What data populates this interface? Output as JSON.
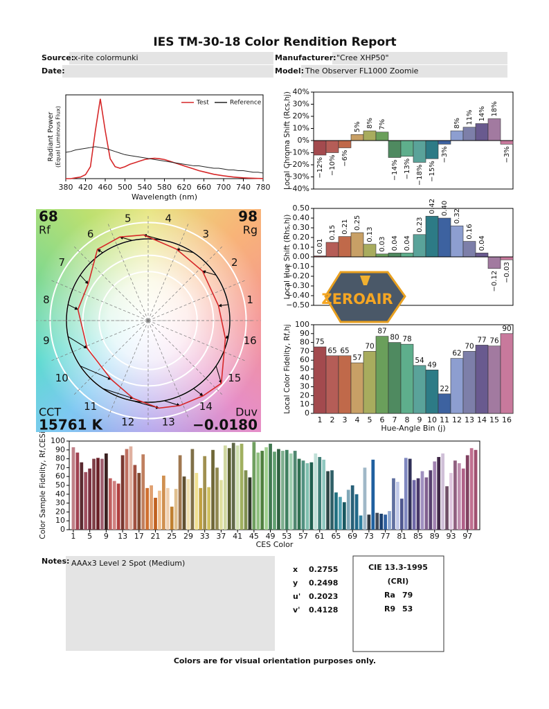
{
  "header": {
    "title": "IES TM-30-18 Color Rendition Report"
  },
  "fields": [
    {
      "label": "Source:",
      "value": "x-rite colormunki"
    },
    {
      "label": "Manufacturer:",
      "value": "\"Cree XHP50\""
    },
    {
      "label": "Date:"
    },
    {
      "label": "Model:",
      "value": "The Observer FL1000 Zoomie"
    }
  ],
  "chart_data": [
    {
      "type": "line",
      "y_label": [
        "Radiant Power",
        "(Equal Luminous Flux)"
      ],
      "x_label": "Wavelength (nm)",
      "x": [
        380,
        390,
        400,
        410,
        420,
        430,
        440,
        450,
        460,
        470,
        480,
        490,
        500,
        510,
        520,
        530,
        540,
        550,
        560,
        570,
        580,
        590,
        600,
        610,
        620,
        630,
        640,
        650,
        660,
        670,
        680,
        690,
        700,
        710,
        720,
        730,
        740,
        750,
        760,
        770,
        780
      ],
      "series": [
        {
          "name": "Test",
          "color": "#d62728",
          "values": [
            0,
            0,
            0.01,
            0.02,
            0.05,
            0.15,
            0.6,
            1.0,
            0.6,
            0.25,
            0.15,
            0.13,
            0.15,
            0.18,
            0.2,
            0.22,
            0.24,
            0.25,
            0.255,
            0.25,
            0.24,
            0.22,
            0.2,
            0.18,
            0.16,
            0.14,
            0.12,
            0.1,
            0.085,
            0.07,
            0.055,
            0.045,
            0.035,
            0.028,
            0.02,
            0.015,
            0.01,
            0.007,
            0.005,
            0.003,
            0.002
          ]
        },
        {
          "name": "Reference",
          "color": "#222222",
          "values": [
            0.33,
            0.34,
            0.36,
            0.37,
            0.38,
            0.39,
            0.4,
            0.39,
            0.38,
            0.36,
            0.34,
            0.32,
            0.3,
            0.29,
            0.28,
            0.27,
            0.26,
            0.25,
            0.24,
            0.23,
            0.22,
            0.21,
            0.2,
            0.19,
            0.18,
            0.17,
            0.16,
            0.16,
            0.15,
            0.14,
            0.13,
            0.13,
            0.12,
            0.11,
            0.11,
            0.1,
            0.1,
            0.09,
            0.08,
            0.08,
            0.07
          ]
        }
      ],
      "xlim": [
        380,
        780
      ],
      "xticks": [
        380,
        420,
        460,
        500,
        540,
        580,
        620,
        660,
        700,
        740,
        780
      ],
      "ylim": [
        0,
        1.05
      ],
      "legend": "upper right"
    },
    {
      "type": "vector",
      "rf_label": "Rf",
      "rf": 68,
      "rg_label": "Rg",
      "rg": 98,
      "cct_label": "CCT",
      "cct": "15761 K",
      "duv_label": "Duv",
      "duv": "−0.0180",
      "hue_bins": [
        "1",
        "2",
        "3",
        "4",
        "5",
        "6",
        "7",
        "8",
        "9",
        "10",
        "11",
        "12",
        "13",
        "14",
        "15",
        "16"
      ],
      "test_color": "#d62728",
      "reference_color": "#000000"
    },
    {
      "type": "bar",
      "y_label": "Local Chroma Shift (Rcs,hj)",
      "values": [
        -12,
        -10,
        -6,
        5,
        8,
        7,
        -14,
        -13,
        -18,
        -15,
        -3,
        8,
        11,
        14,
        18,
        -3
      ],
      "value_labels": [
        "−12%",
        "−10%",
        "−6%",
        "5%",
        "8%",
        "7%",
        "−14%",
        "−13%",
        "−18%",
        "−15%",
        "−3%",
        "8%",
        "11%",
        "14%",
        "18%",
        "−3%"
      ],
      "colors": [
        "#a34a4e",
        "#b55d57",
        "#c0694a",
        "#c8a066",
        "#a8ac5e",
        "#6a9f5b",
        "#4f8a60",
        "#5eae8c",
        "#5aa39a",
        "#2d7b86",
        "#3d62a0",
        "#8d9ed0",
        "#7d7fa9",
        "#695a8f",
        "#a27aa0",
        "#c8799c"
      ],
      "ylim": [
        -40,
        40
      ],
      "yticks": [
        {
          "value": -40,
          "label": "−40%"
        },
        {
          "value": -30,
          "label": "−30%"
        },
        {
          "value": -20,
          "label": "−20%"
        },
        {
          "value": -10,
          "label": "−10%"
        },
        {
          "value": 0,
          "label": "0%"
        },
        {
          "value": 10,
          "label": "10%"
        },
        {
          "value": 20,
          "label": "20%"
        },
        {
          "value": 30,
          "label": "30%"
        },
        {
          "value": 40,
          "label": "40%"
        }
      ]
    },
    {
      "type": "bar",
      "y_label": "Local Hue Shift (Rhs,hj)",
      "values": [
        0.01,
        0.15,
        0.21,
        0.25,
        0.13,
        0.03,
        0.04,
        0.04,
        0.23,
        0.42,
        0.4,
        0.32,
        0.16,
        0.04,
        -0.12,
        -0.03
      ],
      "value_labels": [
        "0.01",
        "0.15",
        "0.21",
        "0.25",
        "0.13",
        "0.03",
        "0.04",
        "0.04",
        "0.23",
        "0.42",
        "0.40",
        "0.32",
        "0.16",
        "0.04",
        "−0.12",
        "−0.03"
      ],
      "colors": [
        "#a34a4e",
        "#b55d57",
        "#c0694a",
        "#c8a066",
        "#a8ac5e",
        "#6a9f5b",
        "#4f8a60",
        "#5eae8c",
        "#5aa39a",
        "#2d7b86",
        "#3d62a0",
        "#8d9ed0",
        "#7d7fa9",
        "#695a8f",
        "#a27aa0",
        "#c8799c"
      ],
      "ylim": [
        -0.5,
        0.5
      ],
      "yticks": [
        {
          "value": -0.5,
          "label": "−0.50"
        },
        {
          "value": -0.4,
          "label": "−0.40"
        },
        {
          "value": -0.3,
          "label": "−0.30"
        },
        {
          "value": -0.2,
          "label": "−0.20"
        },
        {
          "value": -0.1,
          "label": "−0.10"
        },
        {
          "value": 0,
          "label": "0.00"
        },
        {
          "value": 0.1,
          "label": "0.10"
        },
        {
          "value": 0.2,
          "label": "0.20"
        },
        {
          "value": 0.3,
          "label": "0.30"
        },
        {
          "value": 0.4,
          "label": "0.40"
        },
        {
          "value": 0.5,
          "label": "0.50"
        }
      ]
    },
    {
      "type": "bar",
      "y_label": "Local Color Fidelity, Rf,hj",
      "x_label": "Hue-Angle Bin (j)",
      "categories": [
        "1",
        "2",
        "3",
        "4",
        "5",
        "6",
        "7",
        "8",
        "9",
        "10",
        "11",
        "12",
        "13",
        "14",
        "15",
        "16"
      ],
      "values": [
        75,
        65,
        65,
        57,
        70,
        87,
        80,
        78,
        54,
        49,
        22,
        62,
        70,
        77,
        76,
        90
      ],
      "colors": [
        "#a34a4e",
        "#b55d57",
        "#c0694a",
        "#c8a066",
        "#a8ac5e",
        "#6a9f5b",
        "#4f8a60",
        "#5eae8c",
        "#5aa39a",
        "#2d7b86",
        "#3d62a0",
        "#8d9ed0",
        "#7d7fa9",
        "#695a8f",
        "#a27aa0",
        "#c8799c"
      ],
      "ylim": [
        0,
        100
      ],
      "yticks": [
        0,
        10,
        20,
        30,
        40,
        50,
        60,
        70,
        80,
        90,
        100
      ]
    },
    {
      "type": "bar",
      "y_label": "Color Sample Fidelity, Rf,CESi",
      "x_label": "CES Color",
      "x": [
        1,
        2,
        3,
        4,
        5,
        6,
        7,
        8,
        9,
        10,
        11,
        12,
        13,
        14,
        15,
        16,
        17,
        18,
        19,
        20,
        21,
        22,
        23,
        24,
        25,
        26,
        27,
        28,
        29,
        30,
        31,
        32,
        33,
        34,
        35,
        36,
        37,
        38,
        39,
        40,
        41,
        42,
        43,
        44,
        45,
        46,
        47,
        48,
        49,
        50,
        51,
        52,
        53,
        54,
        55,
        56,
        57,
        58,
        59,
        60,
        61,
        62,
        63,
        64,
        65,
        66,
        67,
        68,
        69,
        70,
        71,
        72,
        73,
        74,
        75,
        76,
        77,
        78,
        79,
        80,
        81,
        82,
        83,
        84,
        85,
        86,
        87,
        88,
        89,
        90,
        91,
        92,
        93,
        94,
        95,
        96,
        97,
        98,
        99
      ],
      "values": [
        93,
        87,
        76,
        65,
        69,
        80,
        81,
        80,
        86,
        58,
        55,
        52,
        84,
        91,
        94,
        73,
        64,
        85,
        47,
        50,
        36,
        44,
        61,
        47,
        26,
        46,
        84,
        60,
        57,
        91,
        64,
        47,
        83,
        48,
        90,
        70,
        56,
        95,
        92,
        98,
        95,
        97,
        67,
        59,
        99,
        87,
        89,
        93,
        97,
        88,
        91,
        89,
        90,
        86,
        89,
        80,
        78,
        75,
        76,
        86,
        82,
        79,
        66,
        67,
        42,
        37,
        31,
        45,
        50,
        40,
        16,
        70,
        17,
        79,
        19,
        18,
        17,
        21,
        58,
        54,
        35,
        81,
        80,
        56,
        58,
        66,
        59,
        67,
        77,
        82,
        86,
        49,
        64,
        78,
        75,
        69,
        84,
        92,
        90
      ],
      "colors": [
        "#c08088",
        "#a04050",
        "#5a2a30",
        "#a05060",
        "#7a3040",
        "#804048",
        "#6a2028",
        "#a06070",
        "#3a2020",
        "#c06060",
        "#d08080",
        "#b04040",
        "#7a3830",
        "#c07060",
        "#e0b0a0",
        "#a05040",
        "#804830",
        "#c08060",
        "#d07030",
        "#e0a070",
        "#c06020",
        "#f0c090",
        "#d09050",
        "#f0d0b0",
        "#c08030",
        "#e0c090",
        "#a07850",
        "#605030",
        "#f0e0b0",
        "#807048",
        "#f0e090",
        "#c0a040",
        "#a09050",
        "#d0c060",
        "#706838",
        "#908850",
        "#e0e0a0",
        "#d0d8a0",
        "#5a6030",
        "#606848",
        "#d0e0b0",
        "#a0b060",
        "#809050",
        "#303828",
        "#70a060",
        "#90c080",
        "#508040",
        "#a0d090",
        "#407850",
        "#60a070",
        "#306040",
        "#80b090",
        "#408060",
        "#a0d0b0",
        "#508870",
        "#307050",
        "#509080",
        "#80c0b0",
        "#206050",
        "#c0e0d8",
        "#408078",
        "#90c8c0",
        "#304848",
        "#306068",
        "#207080",
        "#50a0b0",
        "#185860",
        "#80a8b8",
        "#286078",
        "#206888",
        "#3080a0",
        "#a0b8c8",
        "#303840",
        "#2060a0",
        "#404858",
        "#1a4070",
        "#3060a0",
        "#90a8d0",
        "#6070a0",
        "#c0c8e8",
        "#505890",
        "#8088c0",
        "#303058",
        "#7068a8",
        "#483868",
        "#a090c0",
        "#806090",
        "#584070",
        "#a080b0",
        "#402848",
        "#d0c0d8",
        "#705068",
        "#e0c8e0",
        "#906080",
        "#c090b0",
        "#b06088",
        "#804060",
        "#c07090",
        "#a05070"
      ],
      "xlim": [
        0,
        100
      ],
      "xticks": [
        1,
        5,
        9,
        13,
        17,
        21,
        25,
        29,
        33,
        37,
        41,
        45,
        49,
        53,
        57,
        61,
        65,
        69,
        73,
        77,
        81,
        85,
        89,
        93,
        97
      ],
      "ylim": [
        0,
        100
      ],
      "yticks": [
        0,
        10,
        20,
        30,
        40,
        50,
        60,
        70,
        80,
        90,
        100
      ]
    }
  ],
  "watermark": "ZEROAIR",
  "notes": {
    "label": "Notes:",
    "text": "AAAx3 Level 2 Spot (Medium)"
  },
  "chromaticity": [
    {
      "label": "x",
      "value": 0.2755
    },
    {
      "label": "y",
      "value": 0.2498
    },
    {
      "label": "u'",
      "value": 0.2023
    },
    {
      "label": "v'",
      "value": 0.4128
    }
  ],
  "cri": {
    "title": "CIE 13.3-1995",
    "subtitle": "(CRI)",
    "rows": [
      {
        "label": "Ra",
        "value": 79
      },
      {
        "label": "R9",
        "value": 53
      }
    ]
  },
  "footer": "Colors are for visual orientation purposes only."
}
